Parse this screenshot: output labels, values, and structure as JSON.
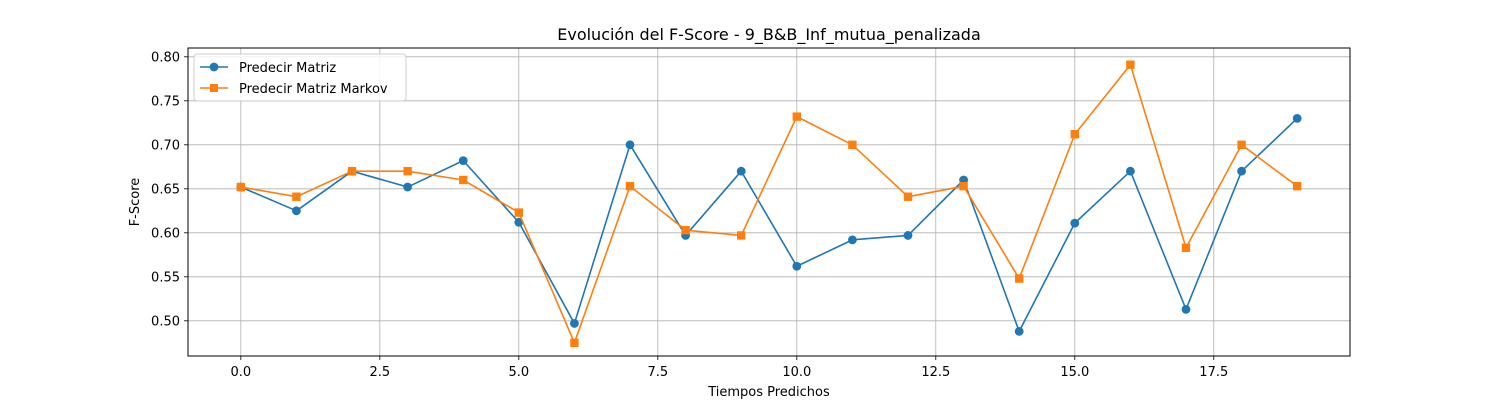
{
  "chart_data": {
    "type": "line",
    "title": "Evolución del F-Score - 9_B&B_Inf_mutua_penalizada",
    "xlabel": "Tiempos Predichos",
    "ylabel": "F-Score",
    "xlim": [
      -0.95,
      19.95
    ],
    "ylim": [
      0.46,
      0.81
    ],
    "xticks": [
      0.0,
      2.5,
      5.0,
      7.5,
      10.0,
      12.5,
      15.0,
      17.5
    ],
    "xtick_labels": [
      "0.0",
      "2.5",
      "5.0",
      "7.5",
      "10.0",
      "12.5",
      "15.0",
      "17.5"
    ],
    "yticks": [
      0.5,
      0.55,
      0.6,
      0.65,
      0.7,
      0.75,
      0.8
    ],
    "ytick_labels": [
      "0.50",
      "0.55",
      "0.60",
      "0.65",
      "0.70",
      "0.75",
      "0.80"
    ],
    "grid": true,
    "legend_position": "top-left",
    "x": [
      0,
      1,
      2,
      3,
      4,
      5,
      6,
      7,
      8,
      9,
      10,
      11,
      12,
      13,
      14,
      15,
      16,
      17,
      18,
      19
    ],
    "series": [
      {
        "name": "Predecir Matriz",
        "color": "#1f77b4",
        "marker": "circle",
        "values": [
          0.652,
          0.625,
          0.67,
          0.652,
          0.682,
          0.612,
          0.497,
          0.7,
          0.597,
          0.67,
          0.562,
          0.592,
          0.597,
          0.66,
          0.488,
          0.611,
          0.67,
          0.513,
          0.67,
          0.73
        ]
      },
      {
        "name": "Predecir Matriz Markov",
        "color": "#ff7f0e",
        "marker": "square",
        "values": [
          0.652,
          0.641,
          0.67,
          0.67,
          0.66,
          0.623,
          0.475,
          0.653,
          0.603,
          0.597,
          0.732,
          0.7,
          0.641,
          0.653,
          0.548,
          0.712,
          0.791,
          0.583,
          0.7,
          0.653
        ]
      }
    ]
  }
}
